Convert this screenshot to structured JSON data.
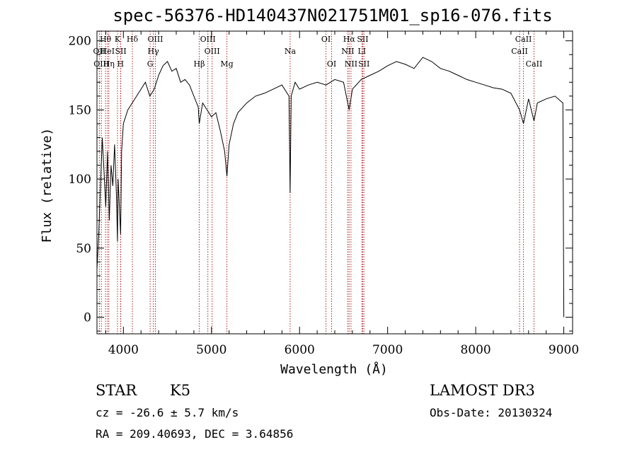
{
  "chart_data": {
    "type": "line",
    "title": "spec-56376-HD140437N021751M01_sp16-076.fits",
    "xlabel": "Wavelength (Å)",
    "ylabel": "Flux (relative)",
    "xlim": [
      3700,
      9100
    ],
    "ylim": [
      -12,
      207
    ],
    "xticks": [
      4000,
      5000,
      6000,
      7000,
      8000,
      9000
    ],
    "yticks": [
      0,
      50,
      100,
      150,
      200
    ],
    "series": [
      {
        "name": "flux",
        "x": [
          3700,
          3720,
          3740,
          3760,
          3780,
          3800,
          3820,
          3840,
          3860,
          3880,
          3900,
          3920,
          3933,
          3940,
          3968,
          3980,
          4000,
          4050,
          4100,
          4150,
          4200,
          4250,
          4300,
          4350,
          4400,
          4450,
          4500,
          4550,
          4600,
          4650,
          4700,
          4750,
          4800,
          4850,
          4861,
          4900,
          4950,
          5000,
          5050,
          5100,
          5150,
          5175,
          5200,
          5250,
          5300,
          5400,
          5500,
          5600,
          5700,
          5800,
          5880,
          5893,
          5905,
          5950,
          6000,
          6100,
          6200,
          6300,
          6400,
          6500,
          6563,
          6600,
          6700,
          6800,
          6900,
          7000,
          7100,
          7200,
          7300,
          7400,
          7500,
          7600,
          7700,
          7800,
          7900,
          8000,
          8100,
          8200,
          8300,
          8400,
          8498,
          8542,
          8600,
          8662,
          8700,
          8800,
          8900,
          8990,
          9000
        ],
        "y": [
          35,
          60,
          95,
          130,
          105,
          80,
          120,
          70,
          110,
          95,
          125,
          90,
          55,
          100,
          60,
          120,
          140,
          150,
          155,
          160,
          165,
          170,
          160,
          165,
          175,
          182,
          185,
          178,
          180,
          170,
          172,
          168,
          160,
          152,
          140,
          155,
          150,
          145,
          148,
          135,
          120,
          102,
          125,
          140,
          148,
          155,
          160,
          162,
          165,
          168,
          160,
          90,
          160,
          170,
          165,
          168,
          170,
          168,
          172,
          170,
          150,
          165,
          172,
          175,
          178,
          182,
          185,
          183,
          180,
          188,
          185,
          180,
          178,
          175,
          172,
          170,
          168,
          166,
          165,
          162,
          150,
          140,
          158,
          142,
          155,
          158,
          160,
          155,
          0
        ]
      }
    ],
    "lines": [
      {
        "name": "Hθ",
        "wavelength": 3797,
        "row": 0
      },
      {
        "name": "OII",
        "wavelength": 3727,
        "row": 1
      },
      {
        "name": "OIII",
        "wavelength": 3750,
        "row": 2
      },
      {
        "name": "HeI",
        "wavelength": 3820,
        "row": 1
      },
      {
        "name": "Hη",
        "wavelength": 3835,
        "row": 2
      },
      {
        "name": "K",
        "wavelength": 3933,
        "row": 0
      },
      {
        "name": "SII",
        "wavelength": 3970,
        "row": 1
      },
      {
        "name": "H",
        "wavelength": 3968,
        "row": 2
      },
      {
        "name": "Hδ",
        "wavelength": 4102,
        "row": 0
      },
      {
        "name": "OIII",
        "wavelength": 4363,
        "row": 0
      },
      {
        "name": "Hγ",
        "wavelength": 4340,
        "row": 1
      },
      {
        "name": "G",
        "wavelength": 4304,
        "row": 2
      },
      {
        "name": "Hβ",
        "wavelength": 4861,
        "row": 2
      },
      {
        "name": "OIII",
        "wavelength": 4959,
        "row": 0
      },
      {
        "name": "OIII",
        "wavelength": 5007,
        "row": 1
      },
      {
        "name": "Mg",
        "wavelength": 5175,
        "row": 2
      },
      {
        "name": "Na",
        "wavelength": 5893,
        "row": 1
      },
      {
        "name": "OI",
        "wavelength": 6300,
        "row": 0
      },
      {
        "name": "OI",
        "wavelength": 6364,
        "row": 2
      },
      {
        "name": "Hα",
        "wavelength": 6563,
        "row": 0
      },
      {
        "name": "NII",
        "wavelength": 6548,
        "row": 1
      },
      {
        "name": "NII",
        "wavelength": 6584,
        "row": 2
      },
      {
        "name": "SII",
        "wavelength": 6717,
        "row": 0
      },
      {
        "name": "LI",
        "wavelength": 6708,
        "row": 1
      },
      {
        "name": "SII",
        "wavelength": 6731,
        "row": 2
      },
      {
        "name": "CaII",
        "wavelength": 8542,
        "row": 0
      },
      {
        "name": "CaII",
        "wavelength": 8498,
        "row": 1
      },
      {
        "name": "CaII",
        "wavelength": 8662,
        "row": 2
      }
    ]
  },
  "info": {
    "class_label": "STAR",
    "subclass": "K5",
    "survey": "LAMOST DR3",
    "cz": "cz = -26.6 ± 5.7 km/s",
    "obs_date": "Obs-Date: 20130324",
    "coords": "RA = 209.40693, DEC =   3.64856"
  },
  "colors": {
    "spectrum": "#000000",
    "line_marker": "#b22222"
  }
}
